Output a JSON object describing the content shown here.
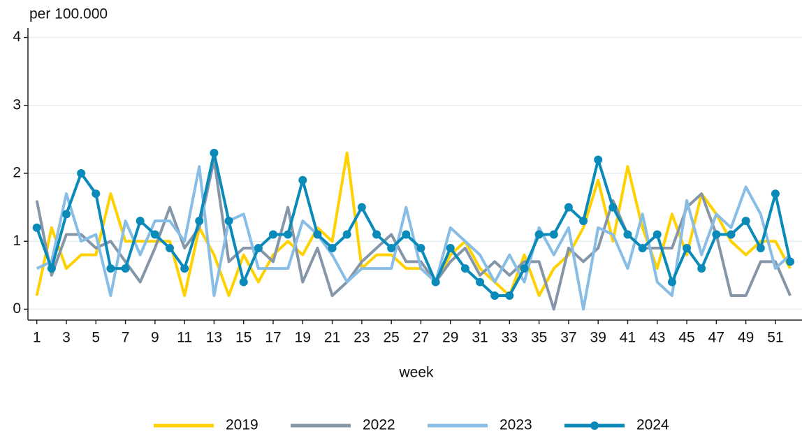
{
  "chart_data": {
    "type": "line",
    "y_label": "per 100.000",
    "x_label": "week",
    "x": [
      1,
      2,
      3,
      4,
      5,
      6,
      7,
      8,
      9,
      10,
      11,
      12,
      13,
      14,
      15,
      16,
      17,
      18,
      19,
      20,
      21,
      22,
      23,
      24,
      25,
      26,
      27,
      28,
      29,
      30,
      31,
      32,
      33,
      34,
      35,
      36,
      37,
      38,
      39,
      40,
      41,
      42,
      43,
      44,
      45,
      46,
      47,
      48,
      49,
      50,
      51,
      52
    ],
    "xlim": [
      0.4,
      52.8
    ],
    "xticks": [
      1,
      3,
      5,
      7,
      9,
      11,
      13,
      15,
      17,
      19,
      21,
      23,
      25,
      27,
      29,
      31,
      33,
      35,
      37,
      39,
      41,
      43,
      45,
      47,
      49,
      51
    ],
    "ylim": [
      -0.16,
      4.14
    ],
    "yticks": [
      0,
      1,
      2,
      3,
      4
    ],
    "grid": true,
    "legend": "bottom",
    "series": [
      {
        "name": "2019",
        "color": "#ffd100",
        "values": [
          0.2,
          1.2,
          0.6,
          0.8,
          0.8,
          1.7,
          1.0,
          1.0,
          1.0,
          1.0,
          0.2,
          1.2,
          0.8,
          0.2,
          0.8,
          0.4,
          0.8,
          1.0,
          0.8,
          1.2,
          1.0,
          2.3,
          0.6,
          0.8,
          0.8,
          0.6,
          0.6,
          0.4,
          0.8,
          1.0,
          0.6,
          0.4,
          0.2,
          0.8,
          0.2,
          0.6,
          0.8,
          1.2,
          1.9,
          1.0,
          2.1,
          1.2,
          0.6,
          1.4,
          0.8,
          1.7,
          1.4,
          1.0,
          0.8,
          1.0,
          1.0,
          0.6
        ]
      },
      {
        "name": "2022",
        "color": "#8596a8",
        "values": [
          1.6,
          0.5,
          1.1,
          1.1,
          0.9,
          1.0,
          0.7,
          0.4,
          0.9,
          1.5,
          0.9,
          1.2,
          2.2,
          0.7,
          0.9,
          0.9,
          0.7,
          1.5,
          0.4,
          0.9,
          0.2,
          0.4,
          0.7,
          0.9,
          1.1,
          0.7,
          0.7,
          0.4,
          0.7,
          0.9,
          0.5,
          0.7,
          0.5,
          0.7,
          0.7,
          0.0,
          0.9,
          0.7,
          0.9,
          1.6,
          1.1,
          0.9,
          0.9,
          0.9,
          1.5,
          1.7,
          1.1,
          0.2,
          0.2,
          0.7,
          0.7,
          0.2
        ]
      },
      {
        "name": "2023",
        "color": "#88bde6",
        "values": [
          0.6,
          0.7,
          1.7,
          1.0,
          1.1,
          0.2,
          1.3,
          0.8,
          1.3,
          1.3,
          1.0,
          2.1,
          0.2,
          1.3,
          1.4,
          0.6,
          0.6,
          0.6,
          1.3,
          1.1,
          0.8,
          0.4,
          0.6,
          0.6,
          0.6,
          1.5,
          0.6,
          0.4,
          1.2,
          1.0,
          0.8,
          0.4,
          0.8,
          0.4,
          1.2,
          0.8,
          1.2,
          0.0,
          1.2,
          1.1,
          0.6,
          1.4,
          0.4,
          0.2,
          1.6,
          0.8,
          1.4,
          1.2,
          1.8,
          1.4,
          0.6,
          0.8
        ]
      },
      {
        "name": "2024",
        "color": "#0a8ab8",
        "marker": "circle",
        "values": [
          1.2,
          0.6,
          1.4,
          2.0,
          1.7,
          0.6,
          0.6,
          1.3,
          1.1,
          0.9,
          0.6,
          1.3,
          2.3,
          1.3,
          0.4,
          0.9,
          1.1,
          1.1,
          1.9,
          1.1,
          0.9,
          1.1,
          1.5,
          1.1,
          0.9,
          1.1,
          0.9,
          0.4,
          0.9,
          0.6,
          0.4,
          0.2,
          0.2,
          0.6,
          1.1,
          1.1,
          1.5,
          1.3,
          2.2,
          1.5,
          1.1,
          0.9,
          1.1,
          0.4,
          0.9,
          0.6,
          1.1,
          1.1,
          1.3,
          0.9,
          1.7,
          0.7
        ]
      }
    ]
  }
}
